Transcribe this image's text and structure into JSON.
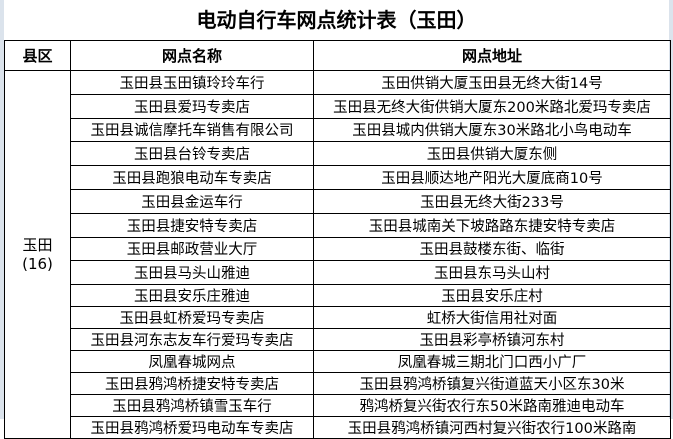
{
  "title": "电动自行车网点统计表（玉田）",
  "headers": {
    "county": "县区",
    "name": "网点名称",
    "address": "网点地址"
  },
  "county": {
    "name": "玉田",
    "count": "(16)"
  },
  "rows": [
    {
      "name": "玉田县玉田镇玲玲车行",
      "address": "玉田供销大厦玉田县无终大街14号"
    },
    {
      "name": "玉田县爱玛专卖店",
      "address": "玉田县无终大街供销大厦东200米路北爱玛专卖店"
    },
    {
      "name": "玉田县诚信摩托车销售有限公司",
      "address": "玉田县城内供销大厦东30米路北小鸟电动车"
    },
    {
      "name": "玉田县台铃专卖店",
      "address": "玉田县供销大厦东侧"
    },
    {
      "name": "玉田县跑狼电动车专卖店",
      "address": "玉田县顺达地产阳光大厦底商10号"
    },
    {
      "name": "玉田县金运车行",
      "address": "玉田县无终大街233号"
    },
    {
      "name": "玉田县捷安特专卖店",
      "address": "玉田县城南关下坡路路东捷安特专卖店"
    },
    {
      "name": "玉田县邮政营业大厅",
      "address": "玉田县鼓楼东街、临街"
    },
    {
      "name": "玉田县马头山雅迪",
      "address": "玉田县东马头山村"
    },
    {
      "name": "玉田县安乐庄雅迪",
      "address": "玉田县安乐庄村"
    },
    {
      "name": "玉田县虹桥爱玛专卖店",
      "address": "虹桥大街信用社对面"
    },
    {
      "name": "玉田县河东志友车行爱玛专卖店",
      "address": "玉田县彩亭桥镇河东村"
    },
    {
      "name": "凤凰春城网点",
      "address": "凤凰春城三期北门口西小广厂"
    },
    {
      "name": "玉田县鸦鸿桥捷安特专卖店",
      "address": "玉田县鸦鸿桥镇复兴街道蓝天小区东30米"
    },
    {
      "name": "玉田县鸦鸿桥镇雪玉车行",
      "address": "鸦鸿桥复兴街农行东50米路南雅迪电动车"
    },
    {
      "name": "玉田县鸦鸿桥爱玛电动车专卖店",
      "address": "玉田县鸦鸿桥镇河西村复兴街农行100米路南"
    }
  ]
}
